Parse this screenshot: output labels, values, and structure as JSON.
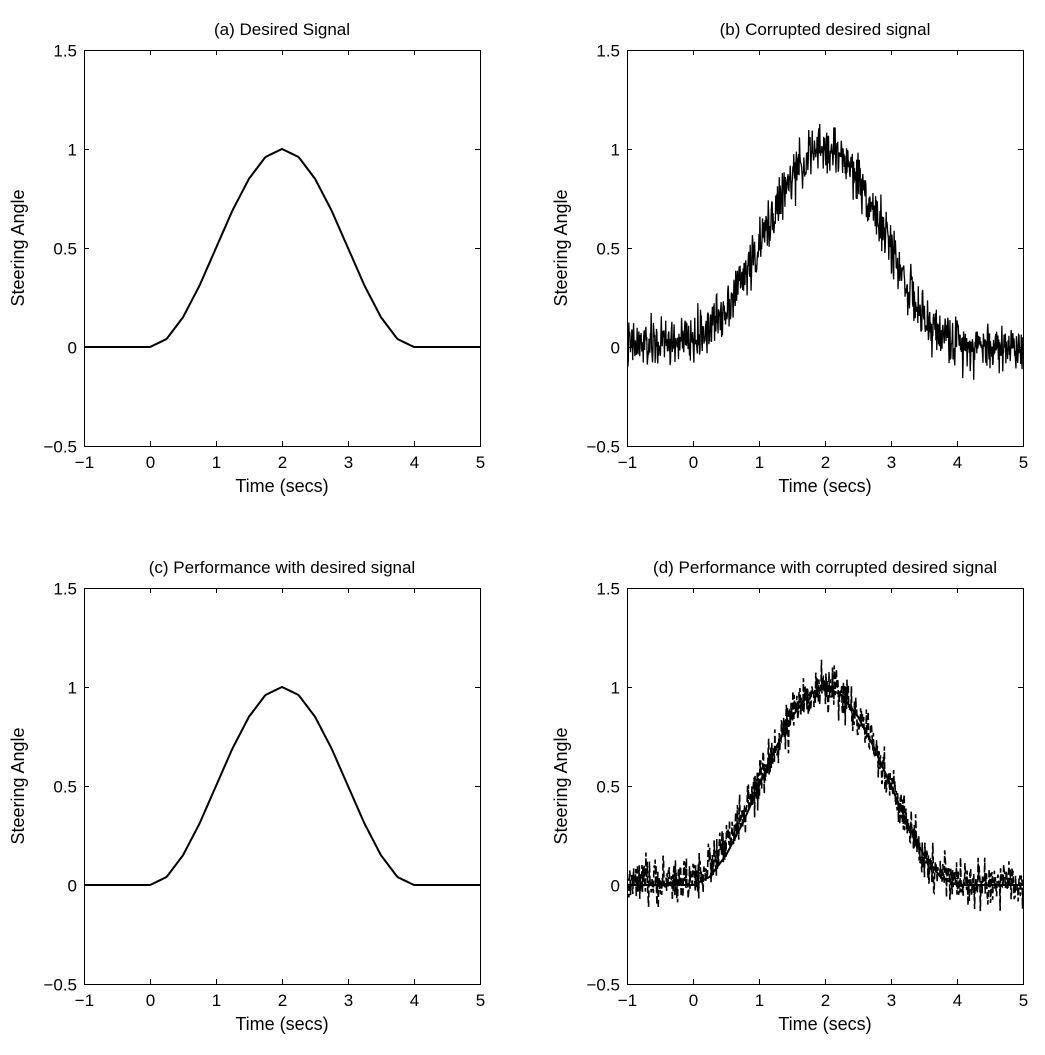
{
  "chart_data": [
    {
      "type": "line",
      "panel": "a",
      "title": "(a) Desired Signal",
      "xlabel": "Time (secs)",
      "ylabel": "Steering Angle",
      "xlim": [
        -1,
        5
      ],
      "ylim": [
        -0.5,
        1.5
      ],
      "xticks": [
        "-1",
        "0",
        "1",
        "2",
        "3",
        "4",
        "5"
      ],
      "yticks": [
        "-0.5",
        "0",
        "0.5",
        "1",
        "1.5"
      ],
      "grid": false,
      "series": [
        {
          "style": "solid",
          "noise": 0,
          "x": [
            -1,
            0,
            0.25,
            0.5,
            0.75,
            1,
            1.25,
            1.5,
            1.75,
            2,
            2.25,
            2.5,
            2.75,
            3,
            3.25,
            3.5,
            3.75,
            4,
            5
          ],
          "y": [
            0,
            0,
            0.04,
            0.15,
            0.31,
            0.5,
            0.69,
            0.85,
            0.96,
            1,
            0.96,
            0.85,
            0.69,
            0.5,
            0.31,
            0.15,
            0.04,
            0,
            0
          ]
        }
      ]
    },
    {
      "type": "line",
      "panel": "b",
      "title": "(b) Corrupted desired signal",
      "xlabel": "Time (secs)",
      "ylabel": "Steering Angle",
      "xlim": [
        -1,
        5
      ],
      "ylim": [
        -0.5,
        1.5
      ],
      "xticks": [
        "-1",
        "0",
        "1",
        "2",
        "3",
        "4",
        "5"
      ],
      "yticks": [
        "-0.5",
        "0",
        "0.5",
        "1",
        "1.5"
      ],
      "grid": false,
      "series": [
        {
          "style": "noisy",
          "noise": 0.1,
          "x": [
            -1,
            -0.5,
            0,
            0.25,
            0.5,
            0.75,
            1,
            1.25,
            1.5,
            1.75,
            2,
            2.25,
            2.5,
            2.75,
            3,
            3.25,
            3.5,
            4,
            4.5,
            5
          ],
          "y": [
            0,
            0.02,
            0.03,
            0.1,
            0.2,
            0.35,
            0.5,
            0.7,
            0.85,
            0.97,
            1,
            0.97,
            0.85,
            0.69,
            0.5,
            0.31,
            0.12,
            0.02,
            0,
            0
          ]
        }
      ]
    },
    {
      "type": "line",
      "panel": "c",
      "title": "(c) Performance with desired signal",
      "xlabel": "Time (secs)",
      "ylabel": "Steering Angle",
      "xlim": [
        -1,
        5
      ],
      "ylim": [
        -0.5,
        1.5
      ],
      "xticks": [
        "-1",
        "0",
        "1",
        "2",
        "3",
        "4",
        "5"
      ],
      "yticks": [
        "-0.5",
        "0",
        "0.5",
        "1",
        "1.5"
      ],
      "grid": false,
      "series": [
        {
          "style": "solid",
          "noise": 0,
          "x": [
            -1,
            0,
            0.25,
            0.5,
            0.75,
            1,
            1.25,
            1.5,
            1.75,
            2,
            2.25,
            2.5,
            2.75,
            3,
            3.25,
            3.5,
            3.75,
            4,
            5
          ],
          "y": [
            0,
            0,
            0.04,
            0.15,
            0.31,
            0.5,
            0.69,
            0.85,
            0.96,
            1,
            0.96,
            0.85,
            0.69,
            0.5,
            0.31,
            0.15,
            0.04,
            0,
            0
          ]
        }
      ]
    },
    {
      "type": "line",
      "panel": "d",
      "title": "(d) Performance with corrupted desired signal",
      "xlabel": "Time (secs)",
      "ylabel": "Steering Angle",
      "xlim": [
        -1,
        5
      ],
      "ylim": [
        -0.5,
        1.5
      ],
      "xticks": [
        "-1",
        "0",
        "1",
        "2",
        "3",
        "4",
        "5"
      ],
      "yticks": [
        "-0.5",
        "0",
        "0.5",
        "1",
        "1.5"
      ],
      "grid": false,
      "series": [
        {
          "style": "dashed-noisy",
          "noise": 0.09,
          "x": [
            -1,
            -0.5,
            0,
            0.25,
            0.5,
            0.75,
            1,
            1.25,
            1.5,
            1.75,
            2,
            2.25,
            2.5,
            2.75,
            3,
            3.25,
            3.5,
            4,
            4.5,
            5
          ],
          "y": [
            0,
            0.02,
            0.03,
            0.1,
            0.2,
            0.35,
            0.5,
            0.7,
            0.85,
            0.97,
            1,
            0.97,
            0.85,
            0.69,
            0.5,
            0.31,
            0.12,
            0.02,
            0,
            0
          ]
        },
        {
          "style": "solid",
          "noise": 0,
          "x": [
            -1,
            0,
            0.25,
            0.5,
            0.75,
            1,
            1.25,
            1.5,
            1.75,
            2,
            2.25,
            2.5,
            2.75,
            3,
            3.25,
            3.5,
            3.75,
            4,
            5
          ],
          "y": [
            0,
            0,
            0.04,
            0.15,
            0.31,
            0.5,
            0.69,
            0.85,
            0.96,
            1,
            0.96,
            0.85,
            0.69,
            0.5,
            0.31,
            0.15,
            0.04,
            0,
            0
          ]
        }
      ]
    }
  ]
}
